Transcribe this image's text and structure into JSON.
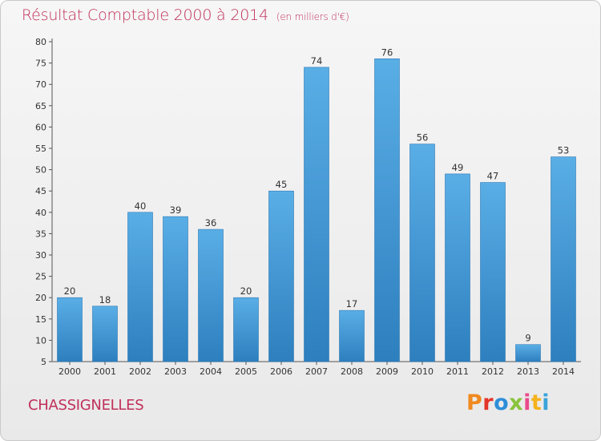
{
  "header": {
    "title": "Résultat Comptable 2000 à 2014",
    "unit": "(en milliers d'€)"
  },
  "footer": {
    "commune": "CHASSIGNELLES",
    "brand": "Proxiti",
    "brand_colors": [
      "#f0891f",
      "#e4352a",
      "#2e8fd8",
      "#8ac33c",
      "#e94a8a",
      "#f5b21b",
      "#3aa3d9"
    ]
  },
  "colors": {
    "title": "#c0305a",
    "bar_top": "#5aaee6",
    "bar_bottom": "#2d7fbe",
    "axis": "#555555"
  },
  "chart_data": {
    "type": "bar",
    "title": "Résultat Comptable 2000 à 2014",
    "subtitle": "(en milliers d'€)",
    "xlabel": "",
    "ylabel": "",
    "categories": [
      "2000",
      "2001",
      "2002",
      "2003",
      "2004",
      "2005",
      "2006",
      "2007",
      "2008",
      "2009",
      "2010",
      "2011",
      "2012",
      "2013",
      "2014"
    ],
    "values": [
      20,
      18,
      40,
      39,
      36,
      20,
      45,
      74,
      17,
      76,
      56,
      49,
      47,
      9,
      53
    ],
    "ylim": [
      5,
      80
    ],
    "yticks": [
      5,
      10,
      15,
      20,
      25,
      30,
      35,
      40,
      45,
      50,
      55,
      60,
      65,
      70,
      75,
      80
    ],
    "grid": false,
    "data_labels": true
  }
}
